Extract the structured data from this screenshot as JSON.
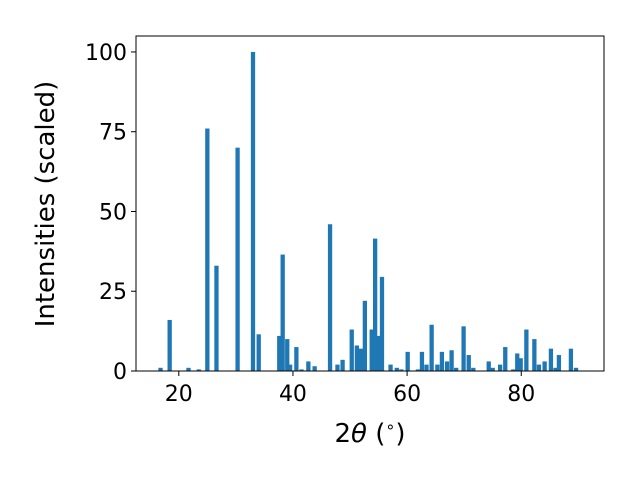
{
  "chart_data": {
    "type": "bar",
    "title": "",
    "xlabel_parts": [
      "2",
      "θ",
      " (",
      "∘",
      ")"
    ],
    "ylabel": "Intensities (scaled)",
    "xlim": [
      12.5,
      94.5
    ],
    "ylim": [
      0,
      105
    ],
    "x_ticks": [
      20,
      40,
      60,
      80
    ],
    "y_ticks": [
      0,
      25,
      50,
      75,
      100
    ],
    "bar_width": 0.75,
    "bar_color": "#1f77b4",
    "grid": false,
    "legend": "none",
    "x": [
      16.8,
      18.4,
      21.7,
      23.5,
      25.0,
      26.6,
      30.3,
      33.0,
      34.0,
      37.6,
      38.2,
      39.0,
      39.5,
      40.6,
      41.5,
      42.7,
      43.8,
      46.5,
      47.8,
      48.7,
      50.3,
      51.2,
      51.9,
      52.6,
      53.8,
      54.4,
      55.0,
      55.6,
      57.1,
      58.2,
      59.0,
      60.1,
      61.9,
      62.6,
      63.4,
      64.3,
      65.3,
      66.1,
      67.0,
      67.8,
      68.6,
      69.9,
      70.8,
      71.6,
      74.3,
      75.0,
      76.3,
      77.2,
      78.6,
      79.3,
      79.9,
      80.9,
      82.3,
      83.1,
      84.1,
      85.2,
      86.0,
      86.6,
      88.7,
      89.6
    ],
    "values": [
      1,
      16,
      1,
      0.5,
      76,
      33,
      70,
      100,
      11.5,
      11,
      36.5,
      10,
      2,
      7.5,
      0.5,
      3,
      1.5,
      46,
      2,
      3.5,
      13,
      8,
      7,
      22,
      13,
      41.5,
      11,
      29.5,
      2,
      1,
      0.5,
      6,
      0.5,
      6,
      2,
      14.5,
      2,
      6,
      3,
      6.5,
      1,
      14,
      5,
      1,
      3,
      1,
      2,
      7.5,
      0.5,
      5.5,
      4,
      13,
      10,
      2,
      3,
      7,
      1,
      5,
      7,
      1
    ]
  }
}
